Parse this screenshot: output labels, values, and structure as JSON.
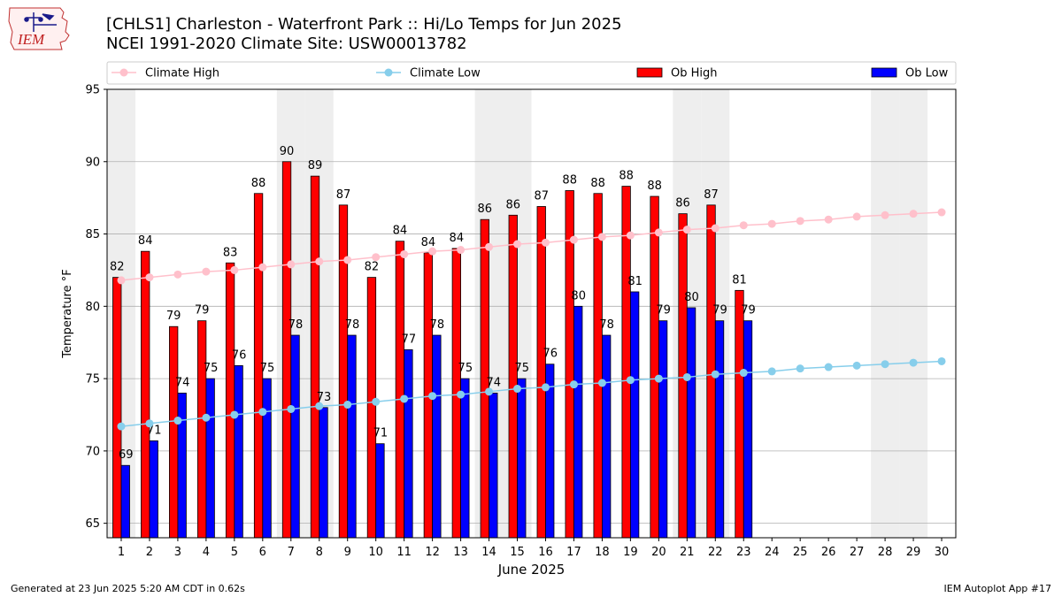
{
  "header": {
    "title_line1": "[CHLS1] Charleston - Waterfront Park :: Hi/Lo Temps for Jun 2025",
    "title_line2": "NCEI 1991-2020 Climate Site: USW00013782"
  },
  "logo": {
    "text": "IEM"
  },
  "footer": {
    "generated": "Generated at 23 Jun 2025 5:20 AM CDT in 0.62s",
    "app": "IEM Autoplot App #17"
  },
  "colors": {
    "ob_high": "#ff0000",
    "ob_low": "#0000ff",
    "climate_high": "#ffc0cb",
    "climate_low": "#87ceeb",
    "weekend_shade": "#eeeeee",
    "grid": "#b0b0b0"
  },
  "chart_data": {
    "type": "bar",
    "title": "[CHLS1] Charleston - Waterfront Park :: Hi/Lo Temps for Jun 2025",
    "xlabel": "June 2025",
    "ylabel": "Temperature °F",
    "ylim": [
      64,
      95
    ],
    "yticks": [
      65,
      70,
      75,
      80,
      85,
      90,
      95
    ],
    "legend_position": "top",
    "grid": true,
    "categories": [
      "1",
      "2",
      "3",
      "4",
      "5",
      "6",
      "7",
      "8",
      "9",
      "10",
      "11",
      "12",
      "13",
      "14",
      "15",
      "16",
      "17",
      "18",
      "19",
      "20",
      "21",
      "22",
      "23",
      "24",
      "25",
      "26",
      "27",
      "28",
      "29",
      "30"
    ],
    "weekend_days": [
      1,
      7,
      8,
      14,
      15,
      21,
      22,
      28,
      29
    ],
    "series": [
      {
        "name": "Ob High",
        "kind": "bar",
        "color": "#ff0000",
        "values": [
          82,
          83.8,
          78.6,
          79,
          83,
          87.8,
          90,
          89,
          87,
          82,
          84.5,
          83.7,
          84,
          86,
          86.3,
          86.9,
          88,
          87.8,
          88.3,
          87.6,
          86.4,
          87,
          81.1,
          null,
          null,
          null,
          null,
          null,
          null,
          null
        ],
        "labels": [
          82,
          84,
          79,
          79,
          83,
          88,
          90,
          89,
          87,
          82,
          84,
          84,
          84,
          86,
          86,
          87,
          88,
          88,
          88,
          88,
          86,
          87,
          81,
          null,
          null,
          null,
          null,
          null,
          null,
          null
        ]
      },
      {
        "name": "Ob Low",
        "kind": "bar",
        "color": "#0000ff",
        "values": [
          69,
          70.7,
          74,
          75,
          75.9,
          75,
          78,
          73,
          78,
          70.5,
          77,
          78,
          75,
          74,
          75,
          76,
          80,
          78,
          81,
          79,
          79.9,
          79,
          79,
          null,
          null,
          null,
          null,
          null,
          null,
          null
        ],
        "labels": [
          69,
          71,
          74,
          75,
          76,
          75,
          78,
          73,
          78,
          71,
          77,
          78,
          75,
          74,
          75,
          76,
          80,
          78,
          81,
          79,
          80,
          79,
          79,
          null,
          null,
          null,
          null,
          null,
          null,
          null
        ]
      },
      {
        "name": "Climate High",
        "kind": "line",
        "color": "#ffc0cb",
        "values": [
          81.8,
          82.0,
          82.2,
          82.4,
          82.5,
          82.7,
          82.9,
          83.1,
          83.2,
          83.4,
          83.6,
          83.8,
          83.9,
          84.1,
          84.3,
          84.4,
          84.6,
          84.8,
          84.9,
          85.1,
          85.3,
          85.4,
          85.6,
          85.7,
          85.9,
          86.0,
          86.2,
          86.3,
          86.4,
          86.5
        ]
      },
      {
        "name": "Climate Low",
        "kind": "line",
        "color": "#87ceeb",
        "values": [
          71.7,
          71.9,
          72.1,
          72.3,
          72.5,
          72.7,
          72.9,
          73.1,
          73.2,
          73.4,
          73.6,
          73.8,
          73.9,
          74.1,
          74.3,
          74.4,
          74.6,
          74.7,
          74.9,
          75.0,
          75.1,
          75.3,
          75.4,
          75.5,
          75.7,
          75.8,
          75.9,
          76.0,
          76.1,
          76.2
        ]
      }
    ]
  }
}
